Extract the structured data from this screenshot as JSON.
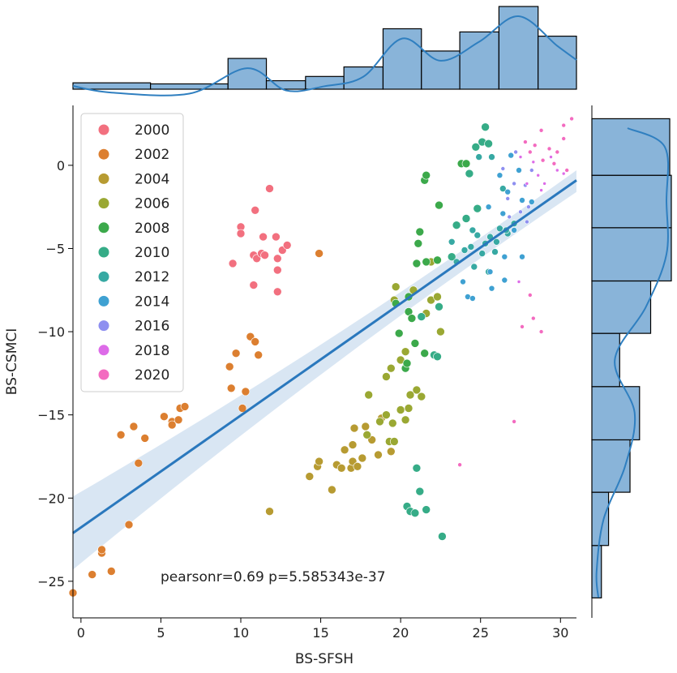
{
  "chart_data": {
    "type": "scatter",
    "title": "",
    "xlabel": "BS-SFSH",
    "ylabel": "BS-CSMCI",
    "xlim": [
      -0.5,
      31
    ],
    "ylim": [
      -27.2,
      3.6
    ],
    "xticks": [
      0,
      5,
      10,
      15,
      20,
      25,
      30
    ],
    "yticks": [
      0,
      -5,
      -10,
      -15,
      -20,
      -25
    ],
    "xtick_labels": [
      "0",
      "5",
      "10",
      "15",
      "20",
      "25",
      "30"
    ],
    "ytick_labels": [
      "0",
      "−5",
      "−10",
      "−15",
      "−20",
      "−25"
    ],
    "legend": {
      "placement": "top-left",
      "entries": [
        {
          "label": "2000",
          "color": "#f2707f"
        },
        {
          "label": "2002",
          "color": "#dc7f30"
        },
        {
          "label": "2004",
          "color": "#b79b32"
        },
        {
          "label": "2006",
          "color": "#9aa833"
        },
        {
          "label": "2008",
          "color": "#3ca94b"
        },
        {
          "label": "2010",
          "color": "#36ac87"
        },
        {
          "label": "2012",
          "color": "#37a9a3"
        },
        {
          "label": "2014",
          "color": "#3fa1d2"
        },
        {
          "label": "2016",
          "color": "#8e8ff0"
        },
        {
          "label": "2018",
          "color": "#dd6be8"
        },
        {
          "label": "2020",
          "color": "#f36bc0"
        }
      ]
    },
    "annotation": "pearsonr=0.69 p=5.585343e-37",
    "regression": {
      "x": [
        -0.5,
        31
      ],
      "y": [
        -22.1,
        -0.9
      ],
      "band_low": [
        -24.3,
        -1.6
      ],
      "band_high": [
        -19.9,
        -0.3
      ]
    },
    "series": [
      {
        "name": "2000",
        "color": "#f2707f",
        "size": 5,
        "points": [
          [
            9.5,
            -5.9
          ],
          [
            10,
            -3.7
          ],
          [
            10,
            -4.1
          ],
          [
            10.8,
            -5.4
          ],
          [
            10.9,
            -2.7
          ],
          [
            11,
            -5.6
          ],
          [
            11.3,
            -5.3
          ],
          [
            11.4,
            -4.3
          ],
          [
            11.5,
            -5.4
          ],
          [
            11.8,
            -1.4
          ],
          [
            12.2,
            -4.3
          ],
          [
            12.3,
            -5.6
          ],
          [
            12.3,
            -6.3
          ],
          [
            12.3,
            -7.6
          ],
          [
            12.6,
            -5.1
          ],
          [
            12.9,
            -4.8
          ],
          [
            10.8,
            -7.2
          ]
        ]
      },
      {
        "name": "2002",
        "color": "#dc7f30",
        "size": 5,
        "points": [
          [
            -0.5,
            -25.7
          ],
          [
            0.7,
            -24.6
          ],
          [
            1.3,
            -23.3
          ],
          [
            1.3,
            -23.1
          ],
          [
            1.9,
            -24.4
          ],
          [
            2.5,
            -16.2
          ],
          [
            3.3,
            -15.7
          ],
          [
            3.6,
            -17.9
          ],
          [
            4,
            -16.4
          ],
          [
            5.2,
            -15.1
          ],
          [
            5.7,
            -15.4
          ],
          [
            5.7,
            -15.6
          ],
          [
            6.1,
            -15.3
          ],
          [
            6.2,
            -14.6
          ],
          [
            6.5,
            -14.5
          ],
          [
            9.3,
            -12.1
          ],
          [
            9.4,
            -13.4
          ],
          [
            9.7,
            -11.3
          ],
          [
            10.1,
            -14.6
          ],
          [
            10.3,
            -13.6
          ],
          [
            10.6,
            -10.3
          ],
          [
            10.9,
            -10.6
          ],
          [
            11.1,
            -11.4
          ],
          [
            14.9,
            -5.3
          ],
          [
            3,
            -21.6
          ]
        ]
      },
      {
        "name": "2004",
        "color": "#b79b32",
        "size": 5,
        "points": [
          [
            11.8,
            -20.8
          ],
          [
            14.3,
            -18.7
          ],
          [
            14.8,
            -18.1
          ],
          [
            14.9,
            -17.8
          ],
          [
            15.7,
            -19.5
          ],
          [
            16,
            -18
          ],
          [
            16.3,
            -18.2
          ],
          [
            16.5,
            -17.1
          ],
          [
            16.9,
            -18.2
          ],
          [
            17,
            -17.8
          ],
          [
            17,
            -16.8
          ],
          [
            17.1,
            -15.8
          ],
          [
            17.3,
            -18.1
          ],
          [
            17.6,
            -17.6
          ],
          [
            17.8,
            -15.7
          ],
          [
            18.2,
            -16.5
          ],
          [
            18.6,
            -17.4
          ],
          [
            18.8,
            -15.2
          ],
          [
            19.4,
            -17.2
          ]
        ]
      },
      {
        "name": "2006",
        "color": "#9aa833",
        "size": 5,
        "points": [
          [
            17.9,
            -16.2
          ],
          [
            18,
            -13.8
          ],
          [
            18.7,
            -15.4
          ],
          [
            19.1,
            -15
          ],
          [
            19.1,
            -12.7
          ],
          [
            19.3,
            -16.6
          ],
          [
            19.4,
            -12.2
          ],
          [
            19.5,
            -15.5
          ],
          [
            19.6,
            -16.6
          ],
          [
            19.6,
            -8.1
          ],
          [
            19.7,
            -7.3
          ],
          [
            20,
            -14.7
          ],
          [
            20,
            -11.7
          ],
          [
            20.3,
            -15.3
          ],
          [
            20.3,
            -11.2
          ],
          [
            20.5,
            -14.6
          ],
          [
            20.6,
            -13.8
          ],
          [
            20.8,
            -7.5
          ],
          [
            21,
            -13.5
          ],
          [
            21.3,
            -13.9
          ],
          [
            21.6,
            -8.9
          ],
          [
            21.9,
            -8.1
          ],
          [
            21.9,
            -5.8
          ],
          [
            22.3,
            -7.9
          ],
          [
            22.5,
            -10
          ]
        ]
      },
      {
        "name": "2008",
        "color": "#3ca94b",
        "size": 5,
        "points": [
          [
            19.7,
            -8.3
          ],
          [
            19.9,
            -10.1
          ],
          [
            20.3,
            -12.2
          ],
          [
            20.4,
            -11.9
          ],
          [
            20.5,
            -7.9
          ],
          [
            20.5,
            -8.8
          ],
          [
            20.7,
            -9.2
          ],
          [
            20.9,
            -10.7
          ],
          [
            21,
            -5.9
          ],
          [
            21.1,
            -4.7
          ],
          [
            21.2,
            -4
          ],
          [
            21.5,
            -11.3
          ],
          [
            21.5,
            -0.9
          ],
          [
            21.6,
            -5.8
          ],
          [
            21.6,
            -0.6
          ],
          [
            22.3,
            -5.7
          ],
          [
            22.4,
            -2.4
          ],
          [
            23.8,
            0.1
          ],
          [
            24.1,
            0.1
          ]
        ]
      },
      {
        "name": "2010",
        "color": "#36ac87",
        "size": 5,
        "points": [
          [
            20.4,
            -20.5
          ],
          [
            20.6,
            -20.8
          ],
          [
            20.9,
            -20.9
          ],
          [
            21,
            -18.2
          ],
          [
            21.2,
            -19.6
          ],
          [
            21.6,
            -20.7
          ],
          [
            22.1,
            -11.4
          ],
          [
            22.3,
            -11.5
          ],
          [
            22.4,
            -8.5
          ],
          [
            22.6,
            -22.3
          ],
          [
            23.2,
            -5.5
          ],
          [
            23.5,
            -3.6
          ],
          [
            24.1,
            -3.2
          ],
          [
            24.3,
            -0.5
          ],
          [
            24.7,
            1.1
          ],
          [
            25.1,
            1.4
          ],
          [
            25.3,
            2.3
          ],
          [
            25.5,
            1.3
          ],
          [
            24.8,
            -2.6
          ],
          [
            21.3,
            -9.1
          ]
        ]
      },
      {
        "name": "2012",
        "color": "#37a9a3",
        "size": 4,
        "points": [
          [
            23.2,
            -4.6
          ],
          [
            23.5,
            -5.8
          ],
          [
            24,
            -5.1
          ],
          [
            24.4,
            -4.9
          ],
          [
            24.5,
            -3.9
          ],
          [
            24.8,
            -4.2
          ],
          [
            25.1,
            -5.3
          ],
          [
            25.3,
            -4.7
          ],
          [
            25.5,
            -6.4
          ],
          [
            25.6,
            -4.3
          ],
          [
            25.9,
            -5.2
          ],
          [
            26,
            -4.6
          ],
          [
            26.2,
            -3.8
          ],
          [
            26.7,
            -4.1
          ],
          [
            24.6,
            -6.1
          ],
          [
            24.9,
            0.5
          ],
          [
            25.7,
            0.5
          ],
          [
            26.4,
            -1.4
          ],
          [
            26.6,
            -3.9
          ],
          [
            27.1,
            -3.5
          ]
        ]
      },
      {
        "name": "2014",
        "color": "#3fa1d2",
        "size": 3.5,
        "points": [
          [
            23.9,
            -7
          ],
          [
            24.2,
            -7.9
          ],
          [
            24.5,
            -8
          ],
          [
            25.5,
            -2.5
          ],
          [
            25.7,
            -7.4
          ],
          [
            26.5,
            -6.9
          ],
          [
            26.5,
            -5.5
          ],
          [
            26.7,
            -1.6
          ],
          [
            27.1,
            -3.9
          ],
          [
            27.6,
            -5.5
          ],
          [
            27.4,
            -0.3
          ],
          [
            26.9,
            0.6
          ],
          [
            26.2,
            -0.6
          ],
          [
            26.4,
            -2.9
          ],
          [
            25.6,
            -6.4
          ],
          [
            27.6,
            -2.1
          ],
          [
            28.2,
            -2.2
          ]
        ]
      },
      {
        "name": "2016",
        "color": "#8e8ff0",
        "size": 2.5,
        "points": [
          [
            26.7,
            -2
          ],
          [
            27.1,
            -1.1
          ],
          [
            27.5,
            -2.8
          ],
          [
            27.8,
            -1.2
          ],
          [
            28,
            -2.5
          ],
          [
            26.4,
            -0.2
          ],
          [
            27.2,
            0.8
          ],
          [
            28.2,
            -0.3
          ],
          [
            26.8,
            -3.1
          ],
          [
            27.9,
            -3.4
          ]
        ]
      },
      {
        "name": "2018",
        "color": "#dd6be8",
        "size": 2,
        "points": [
          [
            27.5,
            0.5
          ],
          [
            27.9,
            -1.1
          ],
          [
            28.3,
            0.2
          ],
          [
            28.6,
            -0.6
          ],
          [
            29,
            -1.1
          ],
          [
            29.4,
            0.5
          ],
          [
            29.8,
            -0.3
          ],
          [
            28.8,
            -1.5
          ],
          [
            30.2,
            -0.5
          ],
          [
            27.4,
            -7
          ]
        ]
      },
      {
        "name": "2020",
        "color": "#f36bc0",
        "size": 2.5,
        "points": [
          [
            27.8,
            1.4
          ],
          [
            28.1,
            0.8
          ],
          [
            28.4,
            1.2
          ],
          [
            28.8,
            2.1
          ],
          [
            29.3,
            1
          ],
          [
            29.8,
            0.8
          ],
          [
            30.2,
            2.4
          ],
          [
            30.7,
            2.8
          ],
          [
            29.6,
            0.1
          ],
          [
            30.2,
            1.6
          ],
          [
            28.9,
            0.3
          ],
          [
            30.4,
            -0.3
          ],
          [
            27.1,
            -15.4
          ],
          [
            28.3,
            -9.2
          ],
          [
            28.1,
            -7.8
          ],
          [
            27.6,
            -9.7
          ],
          [
            28.8,
            -10
          ],
          [
            23.7,
            -18
          ]
        ]
      }
    ],
    "top_histogram": {
      "bin_edges": [
        -0.5,
        4.35,
        9.2,
        11.6,
        14.05,
        16.45,
        18.9,
        21.3,
        23.7,
        26.15,
        28.6,
        31
      ],
      "heights": [
        6,
        5,
        29,
        8,
        12,
        21,
        57,
        36,
        54,
        78,
        50
      ],
      "max": 78
    },
    "right_histogram": {
      "bin_edges": [
        -26,
        -22.85,
        -19.65,
        -16.5,
        -13.3,
        -10.1,
        -6.95,
        -3.75,
        -0.6,
        2.8
      ],
      "widths": [
        12,
        21,
        48,
        60,
        35,
        74,
        100,
        100,
        98
      ],
      "max": 100
    }
  }
}
